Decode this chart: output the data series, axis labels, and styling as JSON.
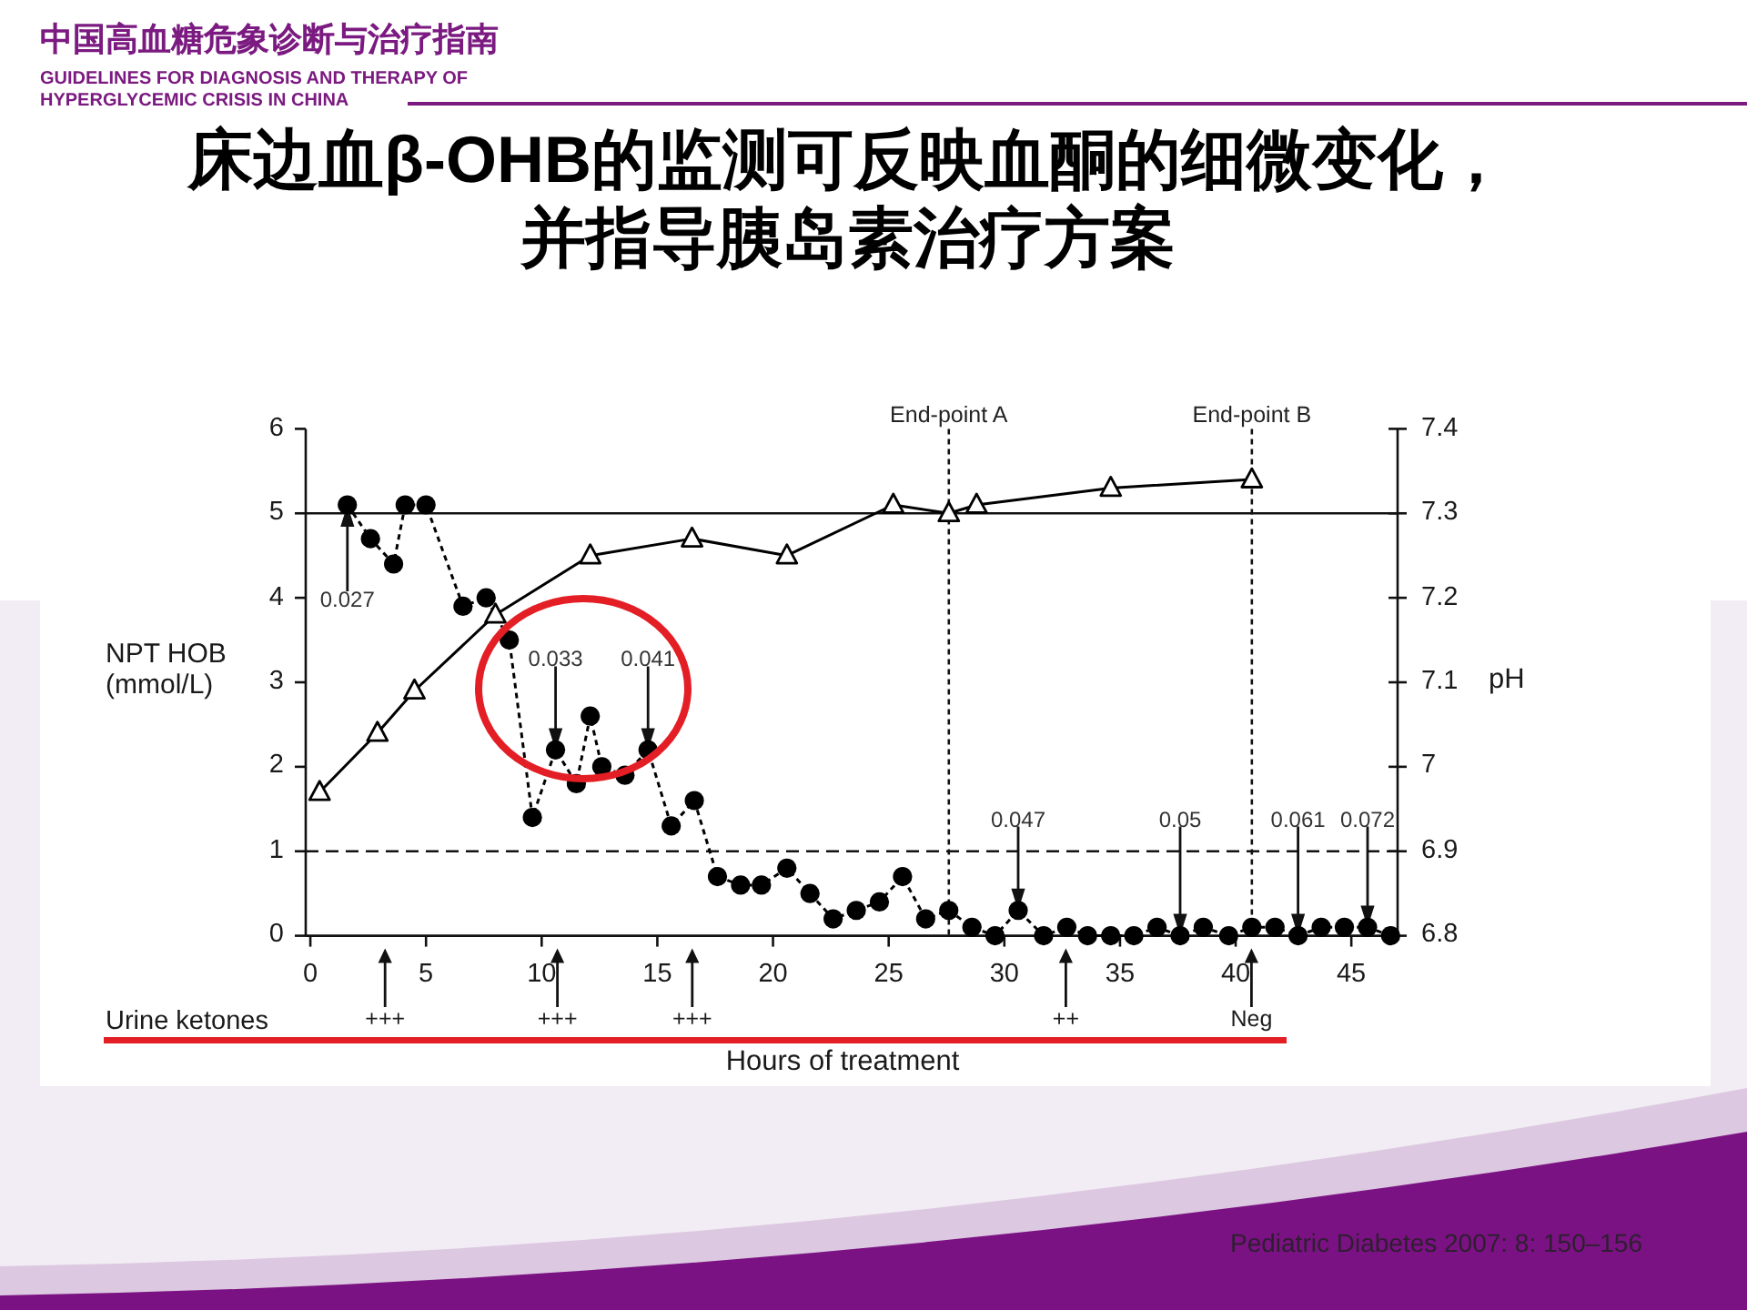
{
  "chart_data": {
    "type": "line",
    "title": "床边血β-OHB的监测可反映血酮的细微变化，并指导胰岛素治疗方案",
    "xlabel": "Hours of treatment",
    "ylabel": "NPT HOB (mmol/L)",
    "y2label": "pH",
    "xlim": [
      -0.2,
      47
    ],
    "xticks": [
      0,
      5,
      10,
      15,
      20,
      25,
      30,
      35,
      40,
      45
    ],
    "ylim": [
      0,
      6
    ],
    "yticks": [
      0,
      1,
      2,
      3,
      4,
      5,
      6
    ],
    "y2lim": [
      6.8,
      7.4
    ],
    "y2ticks": [
      6.8,
      6.9,
      7,
      7.1,
      7.2,
      7.3,
      7.4
    ],
    "series": [
      {
        "color": "#000000",
        "marker": "circle",
        "line_style": "dotted",
        "x": [
          1.6,
          2.6,
          3.6,
          4.1,
          5.0,
          6.6,
          7.6,
          8.6,
          9.6,
          10.6,
          11.5,
          12.1,
          12.6,
          13.6,
          14.6,
          15.6,
          16.6,
          17.6,
          18.6,
          19.5,
          20.6,
          21.6,
          22.6,
          23.6,
          24.6,
          25.6,
          26.6,
          27.6,
          28.6,
          29.6,
          30.6,
          31.7,
          32.7,
          33.6,
          34.6,
          35.6,
          36.6,
          37.6,
          38.6,
          39.7,
          40.7,
          41.7,
          42.7,
          43.7,
          44.7,
          45.7,
          46.7
        ],
        "values": [
          5.1,
          4.7,
          4.4,
          5.1,
          5.1,
          3.9,
          4.0,
          3.5,
          1.4,
          2.2,
          1.8,
          2.6,
          2.0,
          1.9,
          2.2,
          1.3,
          1.6,
          0.7,
          0.6,
          0.6,
          0.8,
          0.5,
          0.2,
          0.3,
          0.4,
          0.7,
          0.2,
          0.3,
          0.1,
          0,
          0.3,
          0,
          0.1,
          0,
          0,
          0,
          0.1,
          0,
          0.1,
          0,
          0.1,
          0.1,
          0,
          0.1,
          0.1,
          0.1,
          0
        ]
      },
      {
        "color": "#000000",
        "marker": "triangle",
        "line_style": "solid",
        "axis": "y2",
        "x": [
          0.4,
          2.9,
          4.5,
          8.0,
          12.1,
          16.5,
          20.6,
          25.2,
          27.6,
          28.8,
          34.6,
          40.7
        ],
        "values": [
          6.97,
          7.04,
          7.09,
          7.18,
          7.25,
          7.27,
          7.25,
          7.31,
          7.3,
          7.31,
          7.33,
          7.34
        ]
      }
    ],
    "ref_lines": [
      {
        "axis": "y",
        "value": 5,
        "line_style": "solid"
      },
      {
        "axis": "y",
        "value": 1,
        "line_style": "dashed"
      },
      {
        "axis": "x",
        "value": 27.6,
        "label": "End-point A",
        "line_style": "dotted"
      },
      {
        "axis": "x",
        "value": 40.7,
        "label": "End-point B",
        "line_style": "dotted"
      }
    ],
    "annotations": [
      "中国高血糖危象诊断与治疗指南",
      "GUIDELINES FOR DIAGNOSIS AND THERAPY OF HYPERGLYCEMIC CRISIS IN CHINA",
      "Urine ketones",
      "Pediatric Diabetes 2007: 8: 150–156",
      "0.027",
      "0.033",
      "0.041",
      "0.047",
      "0.05",
      "0.061",
      "0.072",
      "+++",
      "+++",
      "+++",
      "++",
      "Neg"
    ]
  }
}
